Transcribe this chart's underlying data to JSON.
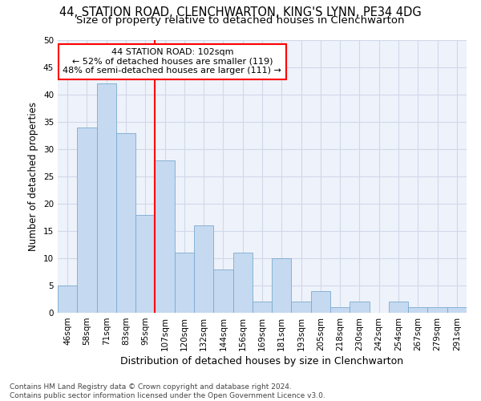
{
  "title_line1": "44, STATION ROAD, CLENCHWARTON, KING'S LYNN, PE34 4DG",
  "title_line2": "Size of property relative to detached houses in Clenchwarton",
  "xlabel": "Distribution of detached houses by size in Clenchwarton",
  "ylabel": "Number of detached properties",
  "categories": [
    "46sqm",
    "58sqm",
    "71sqm",
    "83sqm",
    "95sqm",
    "107sqm",
    "120sqm",
    "132sqm",
    "144sqm",
    "156sqm",
    "169sqm",
    "181sqm",
    "193sqm",
    "205sqm",
    "218sqm",
    "230sqm",
    "242sqm",
    "254sqm",
    "267sqm",
    "279sqm",
    "291sqm"
  ],
  "values": [
    5,
    34,
    42,
    33,
    18,
    28,
    11,
    16,
    8,
    11,
    2,
    10,
    2,
    4,
    1,
    2,
    0,
    2,
    1,
    1,
    1
  ],
  "bar_color": "#c5d9f0",
  "bar_edge_color": "#7aabcf",
  "annotation_box_text": "44 STATION ROAD: 102sqm\n← 52% of detached houses are smaller (119)\n48% of semi-detached houses are larger (111) →",
  "annotation_box_color": "white",
  "annotation_box_edge_color": "red",
  "vline_color": "red",
  "vline_x_index": 5,
  "ylim": [
    0,
    50
  ],
  "yticks": [
    0,
    5,
    10,
    15,
    20,
    25,
    30,
    35,
    40,
    45,
    50
  ],
  "grid_color": "#d0d8e8",
  "bg_color": "#eef2fa",
  "footer_line1": "Contains HM Land Registry data © Crown copyright and database right 2024.",
  "footer_line2": "Contains public sector information licensed under the Open Government Licence v3.0.",
  "title_fontsize": 10.5,
  "subtitle_fontsize": 9.5,
  "xlabel_fontsize": 9,
  "ylabel_fontsize": 8.5,
  "tick_fontsize": 7.5,
  "footer_fontsize": 6.5
}
